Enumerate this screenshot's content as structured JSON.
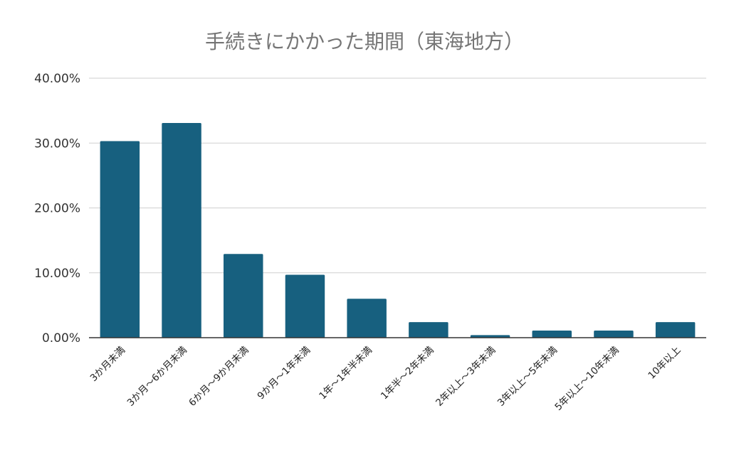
{
  "chart_data": {
    "type": "bar",
    "title": "手続きにかかった期間（東海地方）",
    "xlabel": "",
    "ylabel": "",
    "ylim": [
      0,
      40
    ],
    "yticks": [
      0,
      10,
      20,
      30,
      40
    ],
    "ytick_labels": [
      "0.00%",
      "10.00%",
      "20.00%",
      "30.00%",
      "40.00%"
    ],
    "grid": true,
    "legend": "none",
    "colors": {
      "bar": "#17607f",
      "grid": "#cfcfcf",
      "axis": "#333333",
      "title": "#757575"
    },
    "categories": [
      "3か月未満",
      "3か月～6か月未満",
      "6か月～9か月未満",
      "9か月～1年未満",
      "1年～1年半未満",
      "1年半～2年未満",
      "2年以上～3年未満",
      "3年以上～5年未満",
      "5年以上～10年未満",
      "10年以上"
    ],
    "values": [
      30.3,
      33.1,
      12.9,
      9.7,
      6.0,
      2.4,
      0.4,
      1.1,
      1.1,
      2.4
    ]
  }
}
